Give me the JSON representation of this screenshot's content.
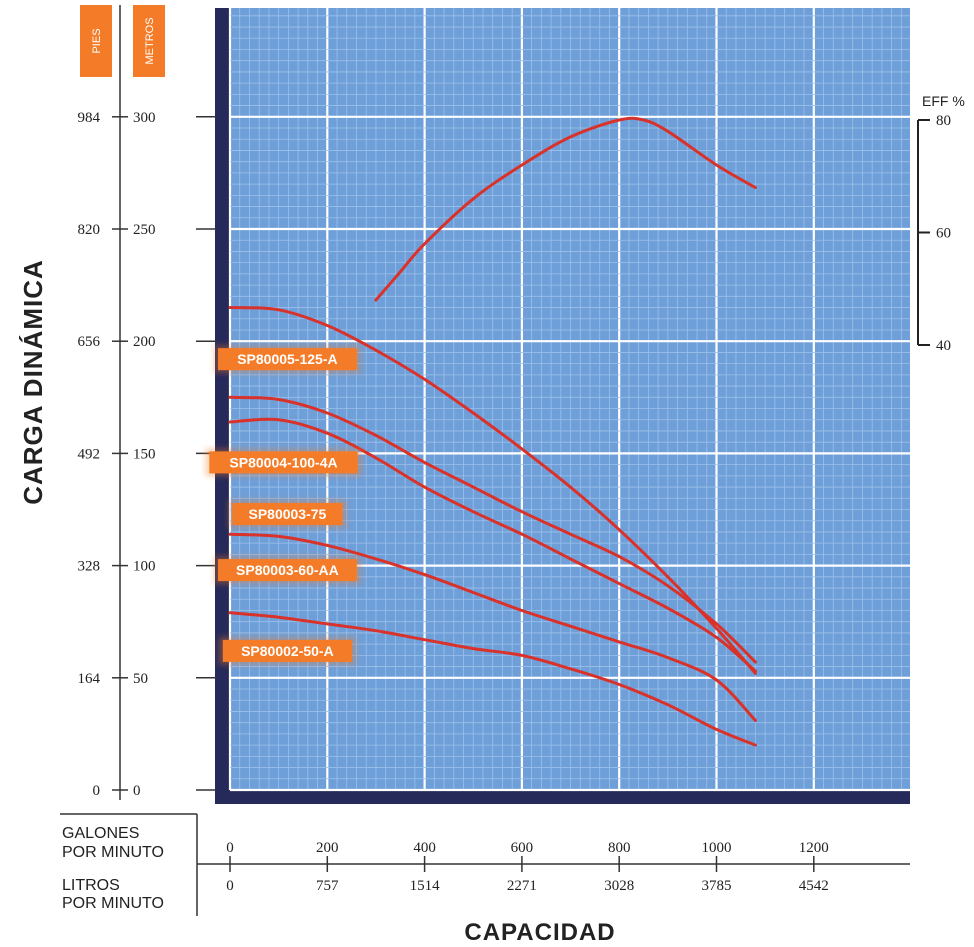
{
  "colors": {
    "plot_bg": "#6f9fd8",
    "grid_major": "#ffffff",
    "grid_minor": "#9cc0ea",
    "frame": "#262a5a",
    "curve": "#d8322a",
    "label_bg": "#f47b27"
  },
  "labels": {
    "pies": "PIES",
    "metros": "METROS",
    "ylabel": "CARGA DINÁMICA",
    "xlabel": "CAPACIDAD",
    "gpm_line1": "GALONES",
    "gpm_line2": "POR MINUTO",
    "lpm_line1": "LITROS",
    "lpm_line2": "POR MINUTO",
    "eff": "EFF %"
  },
  "chart_data": {
    "type": "line",
    "title": "",
    "xlabel": "CAPACIDAD",
    "ylabel": "CARGA DINÁMICA",
    "x_unit_primary": "GALONES POR MINUTO",
    "x_unit_secondary": "LITROS POR MINUTO",
    "y_unit_primary": "METROS",
    "y_unit_secondary": "PIES",
    "xlim": [
      0,
      1400
    ],
    "ylim": [
      0,
      300
    ],
    "grid": true,
    "x_ticks_gpm": [
      "0",
      "200",
      "400",
      "600",
      "800",
      "1000",
      "1200"
    ],
    "x_ticks_lpm": [
      "0",
      "757",
      "1514",
      "2271",
      "3028",
      "3785",
      "4542"
    ],
    "y_ticks_m": [
      "0",
      "50",
      "100",
      "150",
      "200",
      "250",
      "300"
    ],
    "y_ticks_ft": [
      "0",
      "164",
      "328",
      "492",
      "656",
      "820",
      "984"
    ],
    "eff_ticks": [
      "40",
      "60",
      "80"
    ],
    "eff_range": [
      40,
      80
    ],
    "series": [
      {
        "name": "SP80005-125-A",
        "label_anchor": [
          118,
          192
        ],
        "x": [
          0,
          100,
          200,
          300,
          400,
          500,
          600,
          700,
          800,
          900,
          1000,
          1080
        ],
        "y": [
          215,
          214,
          207,
          196,
          183,
          168,
          152,
          135,
          116,
          95,
          72,
          52
        ]
      },
      {
        "name": "SP80004-100-4A",
        "label_anchor": [
          110,
          146
        ],
        "x": [
          0,
          100,
          200,
          300,
          400,
          500,
          600,
          700,
          800,
          900,
          1000,
          1080
        ],
        "y": [
          175,
          174,
          168,
          158,
          146,
          135,
          124,
          114,
          104,
          91,
          74,
          57
        ]
      },
      {
        "name": "SP80003-75",
        "label_anchor": [
          118,
          123
        ],
        "x": [
          0,
          100,
          200,
          300,
          400,
          500,
          600,
          700,
          800,
          900,
          1000,
          1080
        ],
        "y": [
          164,
          165,
          159,
          148,
          135,
          124,
          114,
          103,
          92,
          81,
          68,
          53
        ]
      },
      {
        "name": "SP80003-60-AA",
        "label_anchor": [
          118,
          98
        ],
        "x": [
          0,
          100,
          200,
          300,
          400,
          500,
          600,
          700,
          800,
          900,
          1000,
          1080
        ],
        "y": [
          114,
          113,
          109,
          103,
          96,
          88,
          80,
          73,
          66,
          59,
          49,
          31
        ]
      },
      {
        "name": "SP80002-50-A",
        "label_anchor": [
          118,
          62
        ],
        "x": [
          0,
          100,
          200,
          300,
          400,
          500,
          600,
          700,
          800,
          900,
          1000,
          1080
        ],
        "y": [
          79,
          77,
          74,
          71,
          67,
          63,
          60,
          54,
          47,
          38,
          27,
          20
        ]
      },
      {
        "name": "EFF %",
        "axis": "eff",
        "x": [
          300,
          350,
          400,
          500,
          600,
          700,
          800,
          850,
          900,
          1000,
          1080
        ],
        "y": [
          48,
          53,
          58,
          66,
          72,
          77,
          80,
          80,
          78,
          72,
          68
        ]
      }
    ]
  }
}
